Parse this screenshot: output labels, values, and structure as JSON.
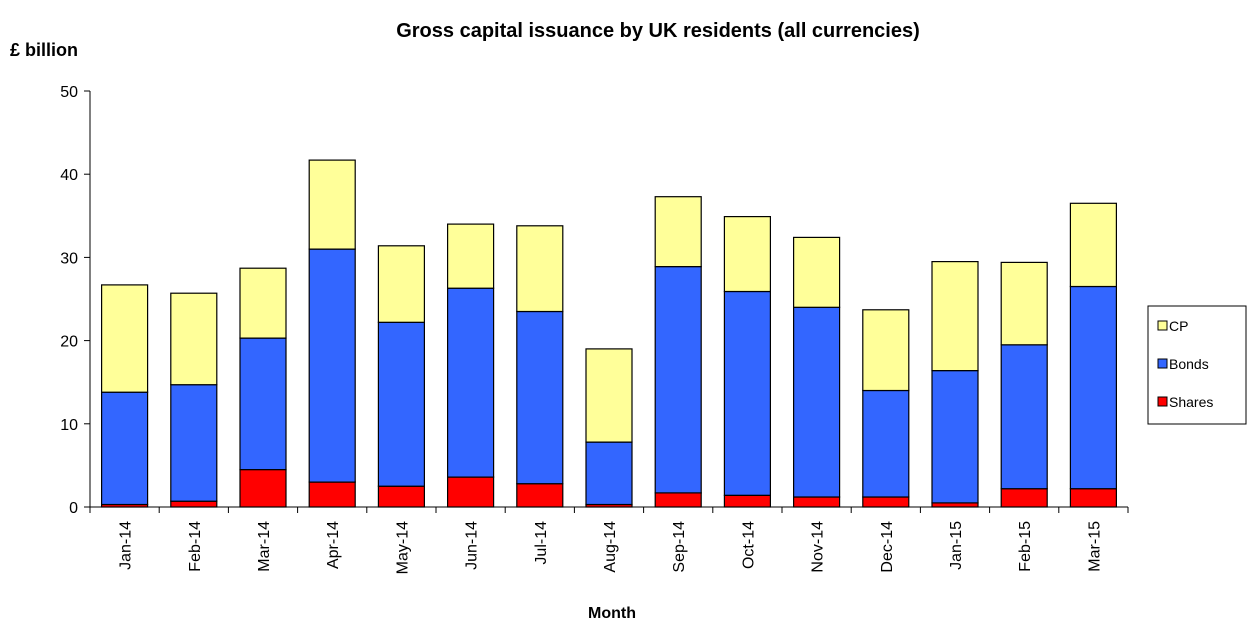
{
  "chart_data": {
    "type": "bar",
    "stacked": true,
    "title": "Gross capital issuance by UK residents (all currencies)",
    "ylabel": "£ billion",
    "xlabel": "Month",
    "ylim": [
      0,
      50
    ],
    "yticks": [
      0,
      10,
      20,
      30,
      40,
      50
    ],
    "categories": [
      "Jan-14",
      "Feb-14",
      "Mar-14",
      "Apr-14",
      "May-14",
      "Jun-14",
      "Jul-14",
      "Aug-14",
      "Sep-14",
      "Oct-14",
      "Nov-14",
      "Dec-14",
      "Jan-15",
      "Feb-15",
      "Mar-15"
    ],
    "series": [
      {
        "name": "Shares",
        "color": "#ff0000",
        "values": [
          0.3,
          0.7,
          4.5,
          3.0,
          2.5,
          3.6,
          2.8,
          0.3,
          1.7,
          1.4,
          1.2,
          1.2,
          0.5,
          2.2,
          2.2
        ]
      },
      {
        "name": "Bonds",
        "color": "#3366ff",
        "values": [
          13.5,
          14.0,
          15.8,
          28.0,
          19.7,
          22.7,
          20.7,
          7.5,
          27.2,
          24.5,
          22.8,
          12.8,
          15.9,
          17.3,
          24.3
        ]
      },
      {
        "name": "CP",
        "color": "#ffff99",
        "values": [
          12.9,
          11.0,
          8.4,
          10.7,
          9.2,
          7.7,
          10.3,
          11.2,
          8.4,
          9.0,
          8.4,
          9.7,
          13.1,
          9.9,
          10.0
        ]
      }
    ],
    "legend_order": [
      "CP",
      "Bonds",
      "Shares"
    ],
    "legend_position": "right",
    "grid": false
  }
}
